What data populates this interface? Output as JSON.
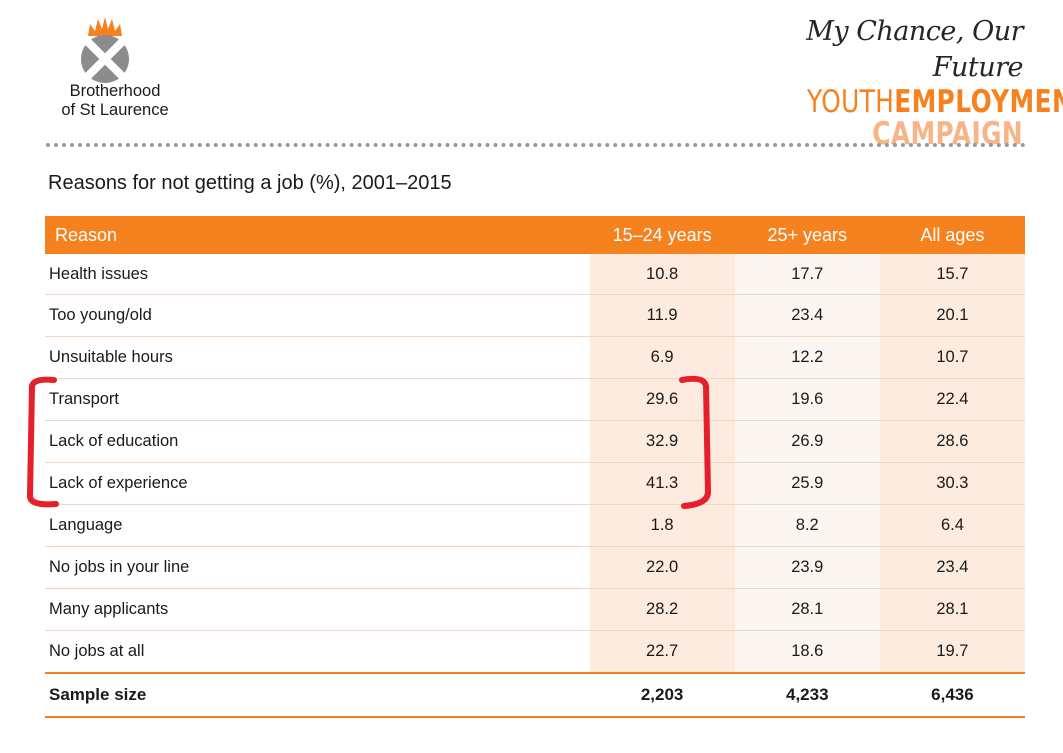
{
  "header": {
    "org_name_line1": "Brotherhood",
    "org_name_line2": "of St Laurence",
    "tagline": "My Chance, Our Future",
    "campaign_part1": "YOUTH",
    "campaign_part2": "EMPLOYMENT",
    "campaign_line2": "CAMPAIGN"
  },
  "table": {
    "title": "Reasons for not getting a job (%), 2001–2015",
    "headers": [
      "Reason",
      "15–24 years",
      "25+ years",
      "All ages"
    ],
    "rows": [
      [
        "Health issues",
        "10.8",
        "17.7",
        "15.7"
      ],
      [
        "Too young/old",
        "11.9",
        "23.4",
        "20.1"
      ],
      [
        "Unsuitable hours",
        "6.9",
        "12.2",
        "10.7"
      ],
      [
        "Transport",
        "29.6",
        "19.6",
        "22.4"
      ],
      [
        "Lack of education",
        "32.9",
        "26.9",
        "28.6"
      ],
      [
        "Lack of experience",
        "41.3",
        "25.9",
        "30.3"
      ],
      [
        "Language",
        "1.8",
        "8.2",
        "6.4"
      ],
      [
        "No jobs in your line",
        "22.0",
        "23.9",
        "23.4"
      ],
      [
        "Many applicants",
        "28.2",
        "28.1",
        "28.1"
      ],
      [
        "No jobs at all",
        "22.7",
        "18.6",
        "19.7"
      ]
    ],
    "footer": [
      "Sample size",
      "2,203",
      "4,233",
      "6,436"
    ]
  },
  "colors": {
    "accent": "#f5821f",
    "accent_light": "#f7b486",
    "highlight_bracket": "#e5202a",
    "logo_grey": "#8c8c8c"
  },
  "icons": {
    "logo": "brotherhood-logo-icon",
    "bracket_left": "left-bracket-annotation",
    "bracket_right": "right-bracket-annotation"
  }
}
